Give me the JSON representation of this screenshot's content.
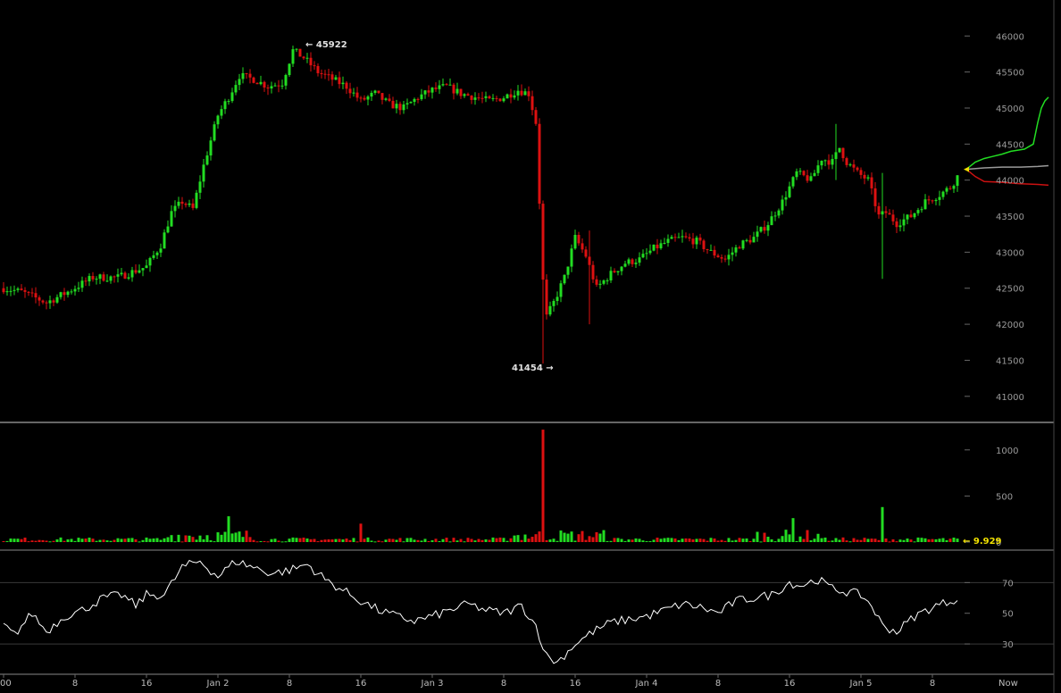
{
  "chart_data": [
    {
      "type": "candlestick",
      "panel": "price",
      "y_ticks": [
        "46000",
        "45500",
        "45000",
        "44500",
        "44000",
        "43500",
        "43000",
        "42500",
        "42000",
        "41500",
        "41000"
      ],
      "ylim": [
        40700,
        46400
      ],
      "annotations": {
        "high": "45922",
        "high_prefix": "← ",
        "low": "41454",
        "low_suffix": " →"
      },
      "keypoints": [
        [
          0,
          42500
        ],
        [
          5,
          42450
        ],
        [
          12,
          42300
        ],
        [
          18,
          42450
        ],
        [
          25,
          42650
        ],
        [
          32,
          42650
        ],
        [
          40,
          42800
        ],
        [
          44,
          43100
        ],
        [
          47,
          43550
        ],
        [
          50,
          43700
        ],
        [
          53,
          43600
        ],
        [
          56,
          44200
        ],
        [
          60,
          44900
        ],
        [
          63,
          45150
        ],
        [
          66,
          45450
        ],
        [
          70,
          45400
        ],
        [
          74,
          45300
        ],
        [
          78,
          45350
        ],
        [
          81,
          45800
        ],
        [
          84,
          45700
        ],
        [
          88,
          45500
        ],
        [
          92,
          45400
        ],
        [
          96,
          45300
        ],
        [
          100,
          45100
        ],
        [
          104,
          45200
        ],
        [
          108,
          45050
        ],
        [
          112,
          45000
        ],
        [
          116,
          45150
        ],
        [
          120,
          45250
        ],
        [
          124,
          45300
        ],
        [
          128,
          45200
        ],
        [
          132,
          45150
        ],
        [
          136,
          45100
        ],
        [
          140,
          45150
        ],
        [
          144,
          45250
        ],
        [
          147,
          45200
        ],
        [
          149,
          44800
        ],
        [
          150,
          43700
        ],
        [
          151,
          42600
        ],
        [
          152,
          42100
        ],
        [
          154,
          42300
        ],
        [
          157,
          42650
        ],
        [
          160,
          43200
        ],
        [
          163,
          42950
        ],
        [
          166,
          42500
        ],
        [
          170,
          42700
        ],
        [
          174,
          42850
        ],
        [
          178,
          42900
        ],
        [
          182,
          43050
        ],
        [
          186,
          43150
        ],
        [
          190,
          43200
        ],
        [
          194,
          43150
        ],
        [
          198,
          43000
        ],
        [
          202,
          42900
        ],
        [
          206,
          43100
        ],
        [
          210,
          43200
        ],
        [
          214,
          43400
        ],
        [
          218,
          43700
        ],
        [
          222,
          44100
        ],
        [
          226,
          44000
        ],
        [
          229,
          44300
        ],
        [
          232,
          44250
        ],
        [
          234,
          44450
        ],
        [
          236,
          44250
        ],
        [
          239,
          44100
        ],
        [
          242,
          44000
        ],
        [
          245,
          43500
        ],
        [
          247,
          43550
        ],
        [
          250,
          43400
        ],
        [
          254,
          43500
        ],
        [
          258,
          43700
        ],
        [
          262,
          43800
        ],
        [
          265,
          43900
        ],
        [
          267,
          44050
        ]
      ],
      "spikes": [
        {
          "i": 151,
          "low": 41454,
          "high": 42700
        },
        {
          "i": 164,
          "low": 42000,
          "high": 43300
        },
        {
          "i": 233,
          "low": 44000,
          "high": 44780
        },
        {
          "i": 246,
          "low": 42630,
          "high": 44100
        }
      ],
      "projection": {
        "colors": {
          "up": "#22dd22",
          "down": "#cc1111",
          "mid": "#9a9a9a",
          "marker": "#f0e000"
        },
        "up": [
          [
            0,
            44150
          ],
          [
            10,
            44250
          ],
          [
            20,
            44300
          ],
          [
            30,
            44330
          ],
          [
            40,
            44360
          ],
          [
            50,
            44400
          ],
          [
            65,
            44430
          ],
          [
            75,
            44500
          ],
          [
            80,
            44800
          ],
          [
            84,
            45000
          ],
          [
            88,
            45100
          ],
          [
            92,
            45150
          ]
        ],
        "mid": [
          [
            0,
            44150
          ],
          [
            20,
            44170
          ],
          [
            40,
            44180
          ],
          [
            60,
            44180
          ],
          [
            80,
            44190
          ],
          [
            92,
            44200
          ]
        ],
        "down": [
          [
            0,
            44150
          ],
          [
            10,
            44050
          ],
          [
            20,
            43980
          ],
          [
            40,
            43970
          ],
          [
            60,
            43950
          ],
          [
            80,
            43940
          ],
          [
            92,
            43930
          ]
        ]
      }
    },
    {
      "type": "bar",
      "panel": "volume",
      "y_ticks": [
        "1000",
        "500",
        "0"
      ],
      "ylim": [
        0,
        1250
      ],
      "last_value": "9.929",
      "last_prefix": "← ",
      "spikes": [
        {
          "i": 151,
          "value": 1220
        },
        {
          "i": 246,
          "value": 380
        },
        {
          "i": 221,
          "value": 260
        },
        {
          "i": 63,
          "value": 280
        },
        {
          "i": 100,
          "value": 200
        }
      ]
    },
    {
      "type": "line",
      "panel": "indicator",
      "y_ticks": [
        "70",
        "50",
        "30"
      ],
      "gridlines": [
        70,
        30
      ],
      "ylim": [
        12,
        90
      ],
      "keypoints": [
        [
          0,
          42
        ],
        [
          3,
          36
        ],
        [
          8,
          50
        ],
        [
          12,
          38
        ],
        [
          17,
          48
        ],
        [
          22,
          52
        ],
        [
          28,
          60
        ],
        [
          33,
          62
        ],
        [
          37,
          55
        ],
        [
          40,
          62
        ],
        [
          45,
          62
        ],
        [
          50,
          80
        ],
        [
          55,
          84
        ],
        [
          60,
          74
        ],
        [
          65,
          84
        ],
        [
          70,
          80
        ],
        [
          75,
          76
        ],
        [
          80,
          78
        ],
        [
          85,
          82
        ],
        [
          90,
          72
        ],
        [
          95,
          65
        ],
        [
          100,
          58
        ],
        [
          105,
          52
        ],
        [
          110,
          48
        ],
        [
          115,
          45
        ],
        [
          120,
          48
        ],
        [
          125,
          52
        ],
        [
          130,
          56
        ],
        [
          135,
          52
        ],
        [
          140,
          50
        ],
        [
          145,
          55
        ],
        [
          149,
          42
        ],
        [
          152,
          22
        ],
        [
          155,
          18
        ],
        [
          160,
          30
        ],
        [
          165,
          38
        ],
        [
          170,
          44
        ],
        [
          175,
          46
        ],
        [
          180,
          48
        ],
        [
          185,
          52
        ],
        [
          190,
          56
        ],
        [
          195,
          54
        ],
        [
          200,
          50
        ],
        [
          205,
          58
        ],
        [
          210,
          60
        ],
        [
          215,
          62
        ],
        [
          220,
          70
        ],
        [
          223,
          68
        ],
        [
          228,
          72
        ],
        [
          232,
          66
        ],
        [
          236,
          64
        ],
        [
          240,
          62
        ],
        [
          243,
          55
        ],
        [
          246,
          42
        ],
        [
          250,
          38
        ],
        [
          255,
          48
        ],
        [
          260,
          54
        ],
        [
          265,
          58
        ],
        [
          267,
          60
        ]
      ]
    }
  ],
  "x_axis": {
    "ticks": [
      {
        "label": "00",
        "i": 0
      },
      {
        "label": "8",
        "i": 20
      },
      {
        "label": "16",
        "i": 40
      },
      {
        "label": "Jan 2",
        "i": 60
      },
      {
        "label": "8",
        "i": 80
      },
      {
        "label": "16",
        "i": 100
      },
      {
        "label": "Jan 3",
        "i": 120
      },
      {
        "label": "8",
        "i": 140
      },
      {
        "label": "16",
        "i": 160
      },
      {
        "label": "Jan 4",
        "i": 180
      },
      {
        "label": "8",
        "i": 200
      },
      {
        "label": "16",
        "i": 220
      },
      {
        "label": "Jan 5",
        "i": 240
      },
      {
        "label": "8",
        "i": 260
      }
    ],
    "now_label": "Now"
  },
  "colors": {
    "up": "#22dd22",
    "down": "#dd1111",
    "background": "#000000",
    "grid": "#3a3a3a",
    "separator": "#888888",
    "line": "#ffffff"
  }
}
